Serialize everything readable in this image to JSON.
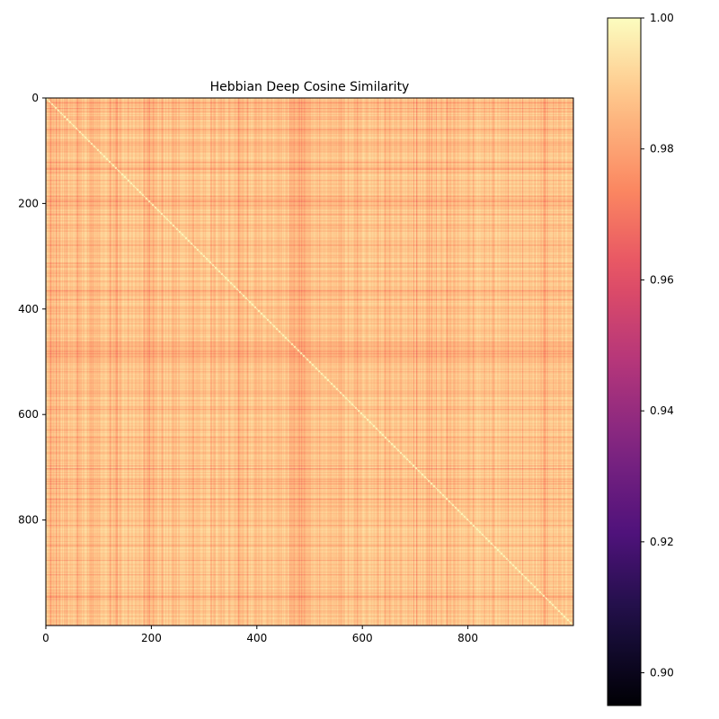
{
  "chart_data": {
    "type": "heatmap",
    "title": "Hebbian Deep Cosine Similarity",
    "xlabel": "",
    "ylabel": "",
    "matrix_size": 1000,
    "xlim": [
      0,
      1000
    ],
    "ylim": [
      1000,
      0
    ],
    "x_ticks": [
      0,
      200,
      400,
      600,
      800
    ],
    "y_ticks": [
      0,
      200,
      400,
      600,
      800
    ],
    "colormap": "magma",
    "color_range": [
      0.895,
      1.0
    ],
    "colorbar_ticks": [
      "0.90",
      "0.92",
      "0.94",
      "0.96",
      "0.98",
      "1.00"
    ],
    "colorbar_values": [
      0.9,
      0.92,
      0.94,
      0.96,
      0.98,
      1.0
    ],
    "diagonal_value": 1.0,
    "baseline_similarity": 0.994,
    "grid": false,
    "legend": "colorbar-right",
    "low_similarity_bands": [
      {
        "index": 58,
        "min_similarity": 0.962
      },
      {
        "index": 88,
        "min_similarity": 0.982
      },
      {
        "index": 185,
        "min_similarity": 0.975
      },
      {
        "index": 192,
        "min_similarity": 0.978
      },
      {
        "index": 240,
        "min_similarity": 0.98
      },
      {
        "index": 283,
        "min_similarity": 0.982
      },
      {
        "index": 312,
        "min_similarity": 0.968
      },
      {
        "index": 348,
        "min_similarity": 0.984
      },
      {
        "index": 470,
        "min_similarity": 0.978
      },
      {
        "index": 480,
        "min_similarity": 0.974
      },
      {
        "index": 488,
        "min_similarity": 0.976
      },
      {
        "index": 496,
        "min_similarity": 0.979
      },
      {
        "index": 590,
        "min_similarity": 0.984
      },
      {
        "index": 670,
        "min_similarity": 0.982
      },
      {
        "index": 722,
        "min_similarity": 0.98
      },
      {
        "index": 944,
        "min_similarity": 0.96
      },
      {
        "index": 975,
        "min_similarity": 0.98
      }
    ]
  }
}
